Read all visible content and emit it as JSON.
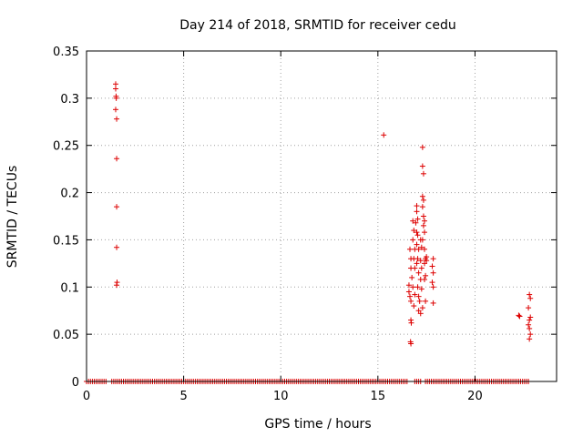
{
  "chart_data": {
    "type": "scatter",
    "title": "Day 214 of 2018, SRMTID for receiver cedu",
    "xlabel": "GPS time / hours",
    "ylabel": "SRMTID / TECUs",
    "xlim": [
      0,
      24.2
    ],
    "ylim": [
      0,
      0.35
    ],
    "xticks": [
      0,
      5,
      10,
      15,
      20
    ],
    "xtick_labels": [
      "0",
      "5",
      "10",
      "15",
      "20"
    ],
    "yticks": [
      0,
      0.05,
      0.1,
      0.15,
      0.2,
      0.25,
      0.3,
      0.35
    ],
    "ytick_labels": [
      "0",
      "0.05",
      "0.1",
      "0.15",
      "0.2",
      "0.25",
      "0.3",
      "0.35"
    ],
    "grid": true,
    "marker": "plus",
    "color": "#dd0000",
    "series": [
      {
        "name": "SRMTID",
        "points": [
          [
            1.5,
            0.315
          ],
          [
            1.5,
            0.31
          ],
          [
            1.52,
            0.302
          ],
          [
            1.53,
            0.3
          ],
          [
            1.5,
            0.288
          ],
          [
            1.55,
            0.278
          ],
          [
            1.55,
            0.236
          ],
          [
            1.55,
            0.185
          ],
          [
            1.55,
            0.142
          ],
          [
            1.57,
            0.105
          ],
          [
            1.55,
            0.102
          ],
          [
            15.3,
            0.261
          ],
          [
            16.6,
            0.102
          ],
          [
            16.6,
            0.095
          ],
          [
            16.65,
            0.09
          ],
          [
            16.7,
            0.085
          ],
          [
            16.65,
            0.14
          ],
          [
            16.7,
            0.13
          ],
          [
            16.7,
            0.12
          ],
          [
            16.75,
            0.11
          ],
          [
            16.7,
            0.065
          ],
          [
            16.72,
            0.062
          ],
          [
            16.68,
            0.042
          ],
          [
            16.7,
            0.04
          ],
          [
            16.8,
            0.17
          ],
          [
            16.85,
            0.16
          ],
          [
            16.8,
            0.15
          ],
          [
            16.9,
            0.14
          ],
          [
            16.85,
            0.13
          ],
          [
            16.9,
            0.12
          ],
          [
            16.8,
            0.1
          ],
          [
            16.9,
            0.092
          ],
          [
            16.85,
            0.08
          ],
          [
            16.95,
            0.168
          ],
          [
            17.0,
            0.18
          ],
          [
            17.0,
            0.186
          ],
          [
            17.05,
            0.172
          ],
          [
            17.0,
            0.158
          ],
          [
            17.05,
            0.155
          ],
          [
            17.0,
            0.145
          ],
          [
            17.1,
            0.14
          ],
          [
            17.05,
            0.13
          ],
          [
            17.0,
            0.125
          ],
          [
            17.1,
            0.115
          ],
          [
            17.05,
            0.1
          ],
          [
            17.1,
            0.09
          ],
          [
            17.15,
            0.085
          ],
          [
            17.1,
            0.075
          ],
          [
            17.2,
            0.072
          ],
          [
            17.2,
            0.15
          ],
          [
            17.25,
            0.142
          ],
          [
            17.2,
            0.128
          ],
          [
            17.25,
            0.12
          ],
          [
            17.2,
            0.108
          ],
          [
            17.25,
            0.098
          ],
          [
            17.3,
            0.248
          ],
          [
            17.3,
            0.228
          ],
          [
            17.35,
            0.22
          ],
          [
            17.3,
            0.196
          ],
          [
            17.35,
            0.192
          ],
          [
            17.3,
            0.185
          ],
          [
            17.35,
            0.175
          ],
          [
            17.4,
            0.17
          ],
          [
            17.35,
            0.165
          ],
          [
            17.4,
            0.158
          ],
          [
            17.3,
            0.15
          ],
          [
            17.4,
            0.14
          ],
          [
            17.45,
            0.13
          ],
          [
            17.4,
            0.125
          ],
          [
            17.45,
            0.112
          ],
          [
            17.4,
            0.108
          ],
          [
            17.5,
            0.132
          ],
          [
            17.5,
            0.128
          ],
          [
            17.45,
            0.085
          ],
          [
            17.3,
            0.078
          ],
          [
            17.85,
            0.13
          ],
          [
            17.8,
            0.122
          ],
          [
            17.85,
            0.115
          ],
          [
            17.8,
            0.105
          ],
          [
            17.85,
            0.1
          ],
          [
            17.85,
            0.083
          ],
          [
            22.25,
            0.07
          ],
          [
            22.3,
            0.069
          ],
          [
            22.8,
            0.092
          ],
          [
            22.85,
            0.088
          ],
          [
            22.75,
            0.078
          ],
          [
            22.85,
            0.068
          ],
          [
            22.8,
            0.065
          ],
          [
            22.75,
            0.06
          ],
          [
            22.8,
            0.056
          ],
          [
            22.85,
            0.05
          ],
          [
            22.8,
            0.045
          ]
        ],
        "zero_band": [
          [
            0,
            1.0
          ],
          [
            1.3,
            16.5
          ],
          [
            16.9,
            17.25
          ],
          [
            17.45,
            22.8
          ]
        ]
      }
    ]
  }
}
